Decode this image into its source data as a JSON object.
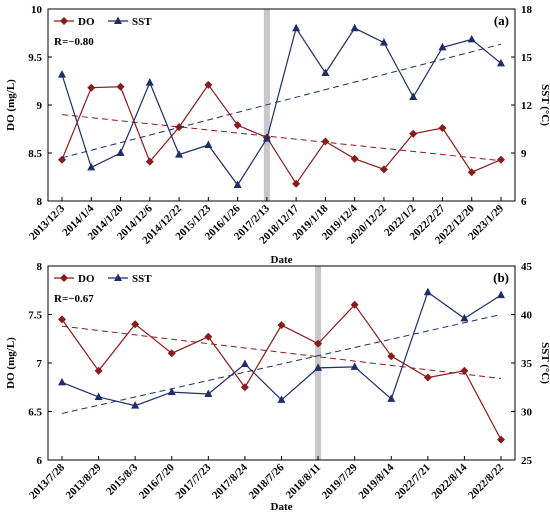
{
  "colors": {
    "do": "#8B1A1A",
    "sst": "#1F2D6B",
    "marker_band": "#c8c8c8"
  },
  "chart_data": [
    {
      "type": "line",
      "panel": "(a)",
      "xlabel": "Date",
      "ylabel_left": "DO (mg/L)",
      "ylabel_right": "SST (°C)",
      "annotation": "R=−0.80",
      "categories": [
        "2013/12/3",
        "2014/1/4",
        "2014/1/20",
        "2014/12/6",
        "2014/12/22",
        "2015/1/23",
        "2016/1/26",
        "2017/2/13",
        "2018/12/17",
        "2019/1/18",
        "2019/12/4",
        "2020/12/22",
        "2022/1/2",
        "2022/2/27",
        "2022/12/20",
        "2023/1/29"
      ],
      "ylim_left": [
        8,
        10
      ],
      "yticks_left": [
        "8",
        "8.5",
        "9",
        "9.5",
        "10"
      ],
      "ylim_right": [
        6,
        18
      ],
      "yticks_right": [
        "6",
        "9",
        "12",
        "15",
        "18"
      ],
      "legend": [
        "DO",
        "SST"
      ],
      "series": [
        {
          "name": "DO",
          "axis": "left",
          "marker": "diamond",
          "values": [
            8.43,
            9.18,
            9.19,
            8.41,
            8.77,
            9.21,
            8.79,
            8.66,
            8.18,
            8.62,
            8.44,
            8.33,
            8.7,
            8.76,
            8.3,
            8.43
          ],
          "trend": [
            8.9,
            8.42
          ]
        },
        {
          "name": "SST",
          "axis": "right",
          "marker": "triangle",
          "values": [
            13.9,
            8.1,
            9.0,
            13.4,
            8.9,
            9.5,
            7.0,
            9.9,
            16.8,
            14.0,
            16.8,
            15.9,
            12.5,
            15.6,
            16.1,
            14.6
          ],
          "trend": [
            8.7,
            15.8
          ]
        }
      ],
      "highlight_category": "2017/2/13"
    },
    {
      "type": "line",
      "panel": "(b)",
      "xlabel": "Date",
      "ylabel_left": "DO (mg/L)",
      "ylabel_right": "SST (°C)",
      "annotation": "R=−0.67",
      "categories": [
        "2013/7/28",
        "2013/8/29",
        "2015/8/3",
        "2016/7/20",
        "2017/7/23",
        "2017/8/24",
        "2018/7/26",
        "2018/8/11",
        "2019/7/29",
        "2019/8/14",
        "2022/7/21",
        "2022/8/14",
        "2022/8/22"
      ],
      "ylim_left": [
        6,
        8
      ],
      "yticks_left": [
        "6",
        "6.5",
        "7",
        "7.5",
        "8"
      ],
      "ylim_right": [
        25,
        45
      ],
      "yticks_right": [
        "25",
        "30",
        "35",
        "40",
        "45"
      ],
      "legend": [
        "DO",
        "SST"
      ],
      "series": [
        {
          "name": "DO",
          "axis": "left",
          "marker": "diamond",
          "values": [
            7.45,
            6.92,
            7.4,
            7.1,
            7.27,
            6.75,
            7.39,
            7.2,
            7.6,
            7.07,
            6.85,
            6.92,
            6.21
          ],
          "trend": [
            7.38,
            6.84
          ]
        },
        {
          "name": "SST",
          "axis": "right",
          "marker": "triangle",
          "values": [
            33.0,
            31.5,
            30.6,
            32.0,
            31.8,
            34.9,
            31.2,
            34.5,
            34.6,
            31.3,
            42.3,
            39.6,
            42.0
          ],
          "trend": [
            29.8,
            40.0
          ]
        }
      ],
      "highlight_category": "2018/8/11"
    }
  ]
}
